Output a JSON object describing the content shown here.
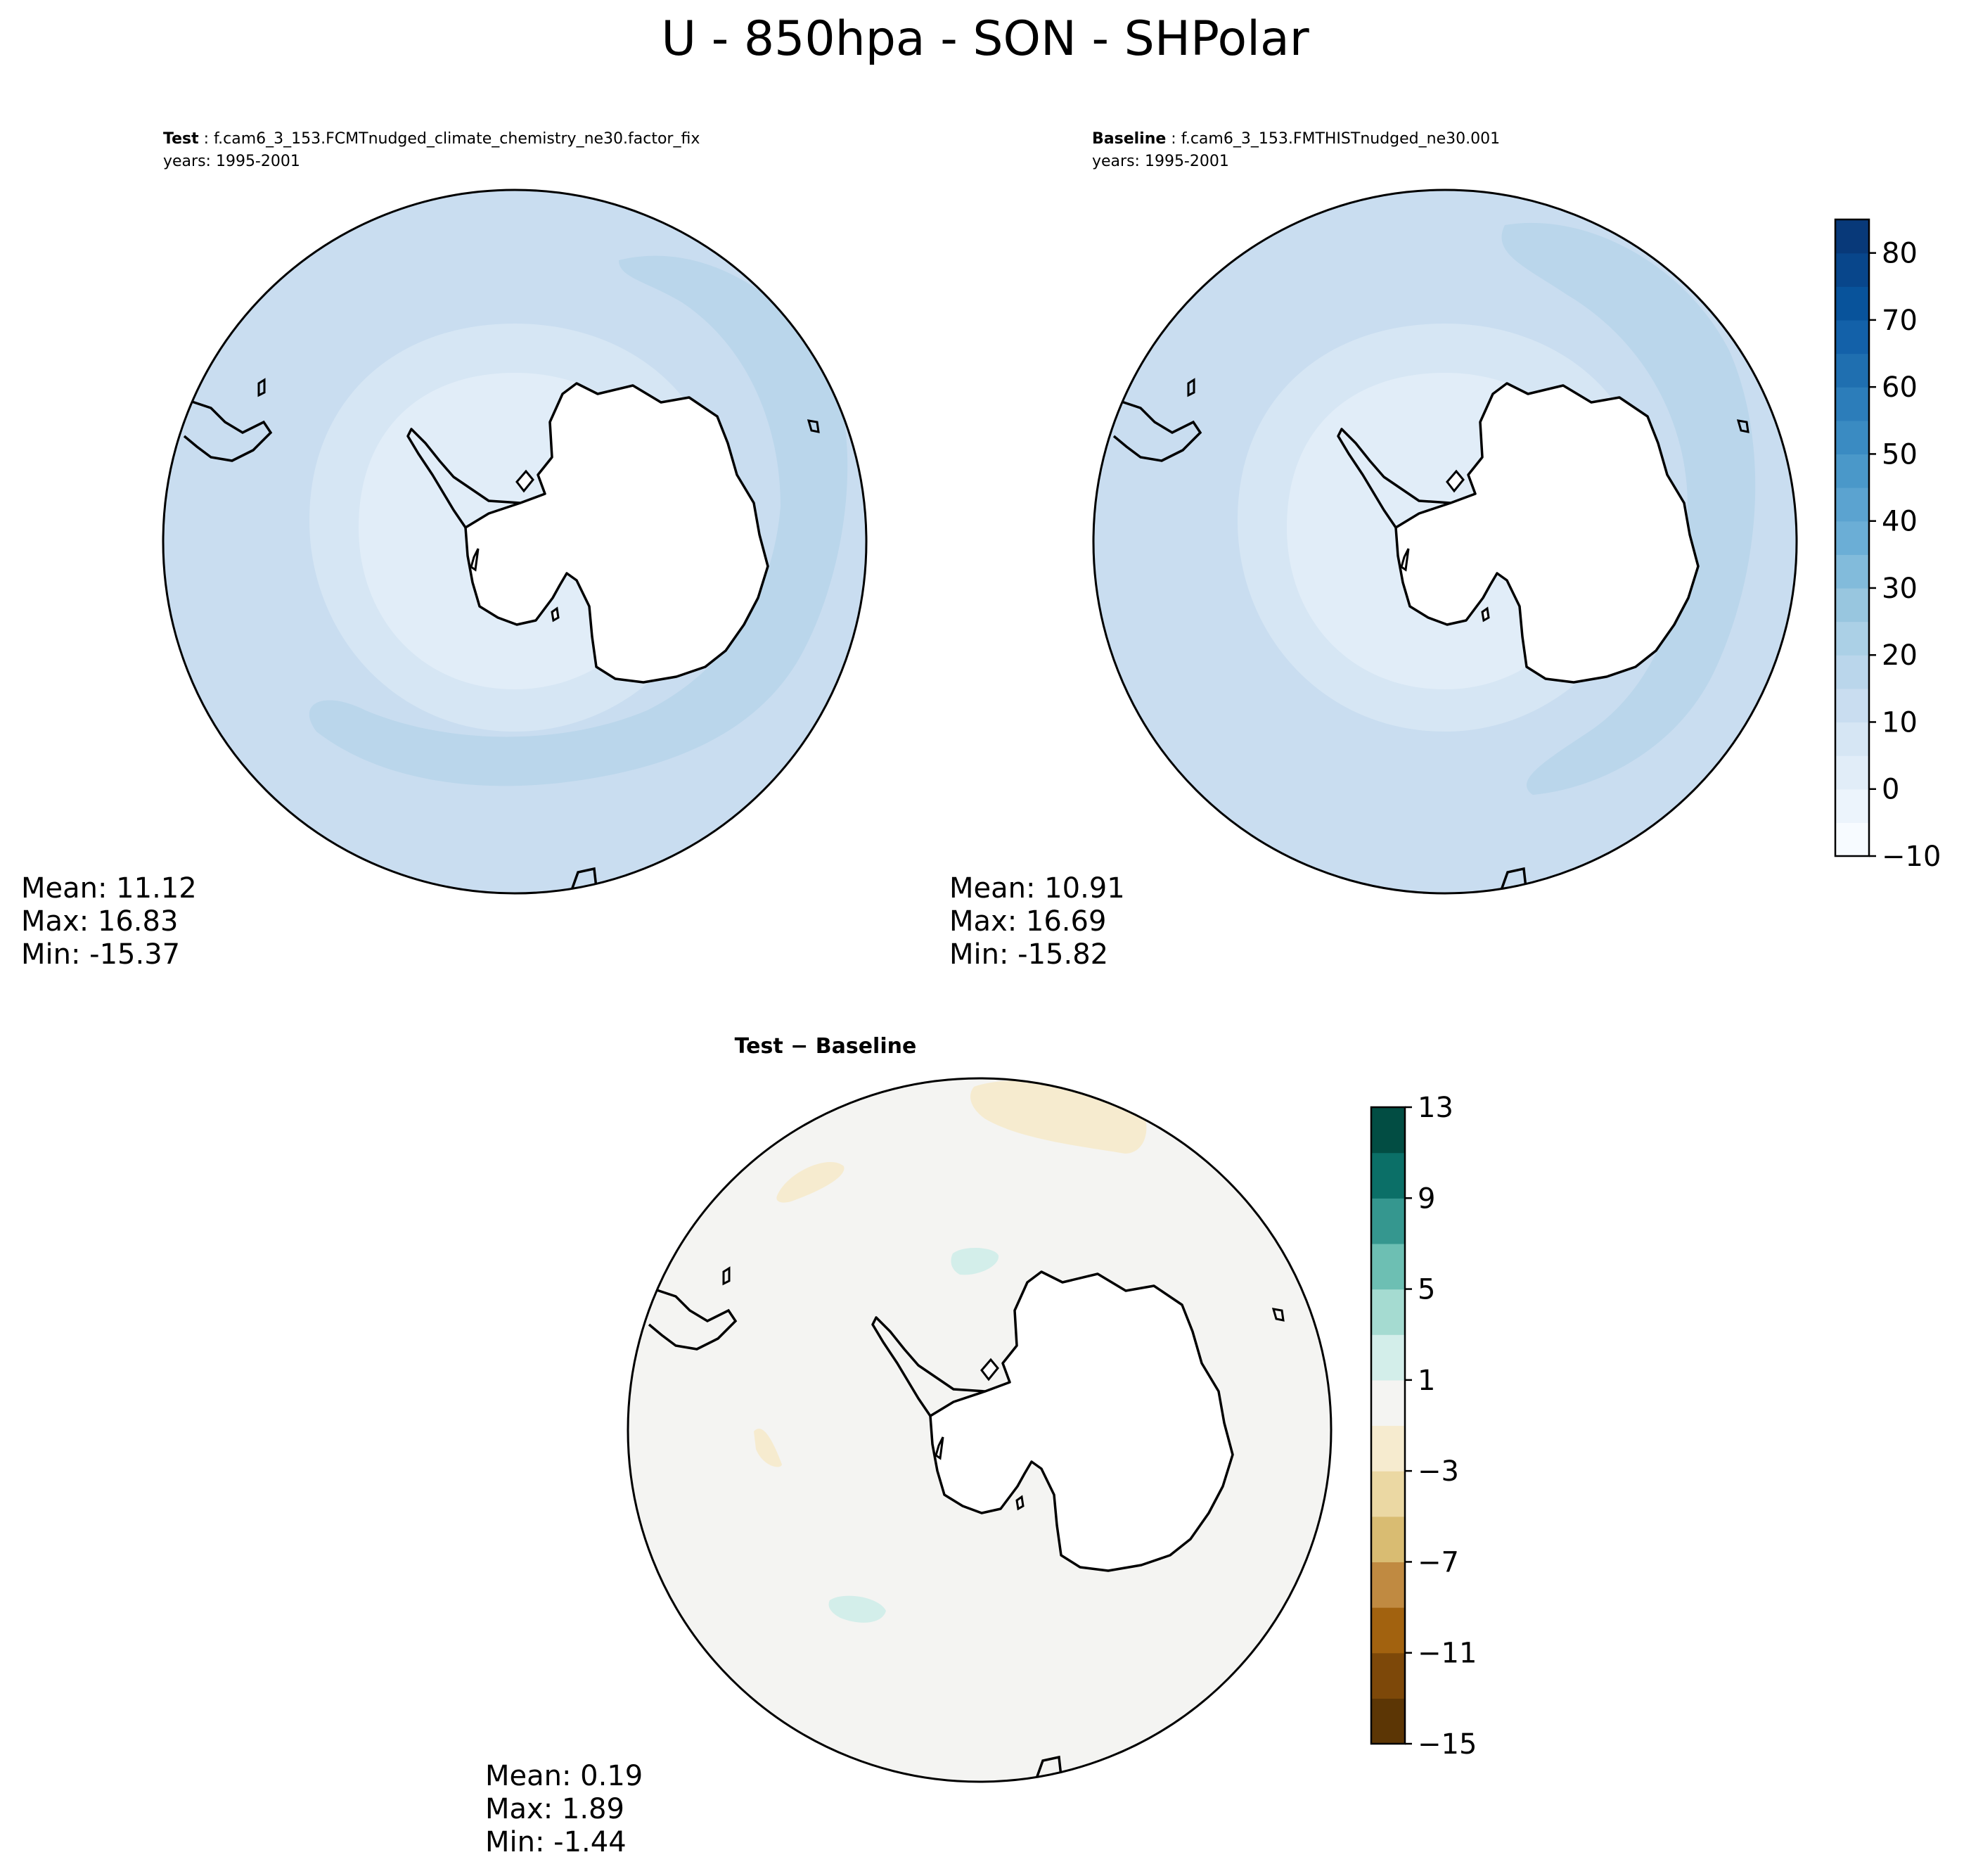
{
  "figure": {
    "title": "U - 850hpa - SON - SHPolar"
  },
  "chart_data": [
    {
      "type": "heatmap",
      "panel": "test",
      "label_bold": "Test",
      "label_rest": " : f.cam6_3_153.FCMTnudged_climate_chemistry_ne30.factor_fix",
      "years": "years: 1995-2001",
      "projection": "south-polar-stereographic",
      "stats": {
        "mean": "Mean: 11.12",
        "max": "Max: 16.83",
        "min": "Min: -15.37"
      },
      "colormap": "Blues",
      "colorbar": {
        "range": [
          -10,
          85
        ],
        "levels": [
          -10,
          -5,
          0,
          5,
          10,
          15,
          20,
          25,
          30,
          35,
          40,
          45,
          50,
          55,
          60,
          65,
          70,
          75,
          80,
          85
        ],
        "tick_labels": [
          "−10",
          "0",
          "10",
          "20",
          "30",
          "40",
          "50",
          "60",
          "70",
          "80"
        ],
        "tick_values": [
          -10,
          0,
          10,
          20,
          30,
          40,
          50,
          60,
          70,
          80
        ],
        "colors": [
          "#f7fbff",
          "#ecf4fc",
          "#e1edf8",
          "#d6e6f4",
          "#c9ddf0",
          "#bad6eb",
          "#abd0e6",
          "#98c6df",
          "#82bbdb",
          "#6baed6",
          "#5ba3d0",
          "#4a98c9",
          "#3a8bc2",
          "#2c7dba",
          "#1f6fb0",
          "#1361a9",
          "#08539b",
          "#08468b",
          "#083979"
        ]
      }
    },
    {
      "type": "heatmap",
      "panel": "baseline",
      "label_bold": "Baseline",
      "label_rest": " : f.cam6_3_153.FMTHISTnudged_ne30.001",
      "years": "years: 1995-2001",
      "projection": "south-polar-stereographic",
      "stats": {
        "mean": "Mean: 10.91",
        "max": "Max: 16.69",
        "min": "Min: -15.82"
      },
      "colormap": "Blues"
    },
    {
      "type": "heatmap",
      "panel": "difference",
      "label": "Test − Baseline",
      "projection": "south-polar-stereographic",
      "stats": {
        "mean": "Mean:  0.19",
        "max": "Max:  1.89",
        "min": "Min: -1.44"
      },
      "colormap": "BrBG",
      "colorbar": {
        "range": [
          -15,
          13
        ],
        "levels": [
          -15,
          -13,
          -11,
          -9,
          -7,
          -5,
          -3,
          -1,
          1,
          3,
          5,
          7,
          9,
          11,
          13
        ],
        "tick_labels": [
          "−15",
          "−11",
          "−7",
          "−3",
          "1",
          "5",
          "9",
          "13"
        ],
        "tick_values": [
          -15,
          -11,
          -7,
          -3,
          1,
          5,
          9,
          13
        ],
        "colors": [
          "#5c3605",
          "#7d4809",
          "#a2620f",
          "#c08a41",
          "#d9bc72",
          "#ebd8a3",
          "#f6ebcf",
          "#f4f4f2",
          "#d3eeea",
          "#a5dbd1",
          "#6dbfb3",
          "#35978f",
          "#0b6f67",
          "#024d43"
        ]
      }
    }
  ]
}
